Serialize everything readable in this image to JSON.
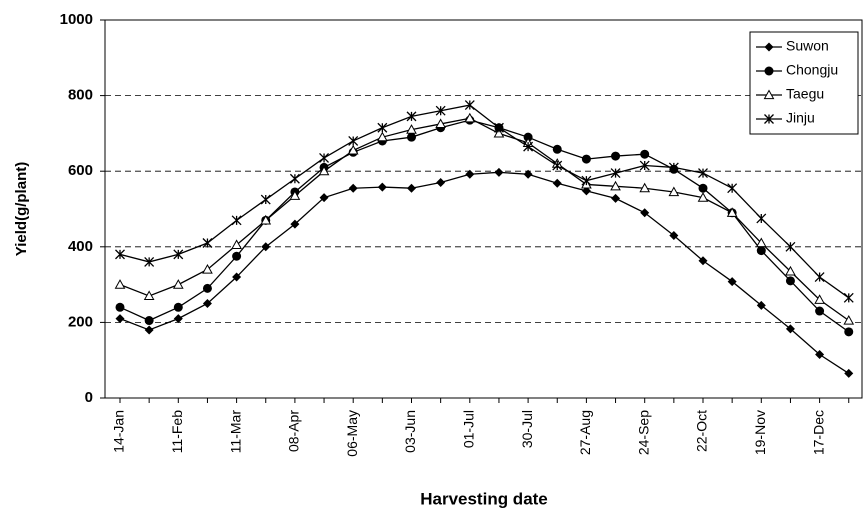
{
  "chart_data": {
    "type": "line",
    "x_label": "Harvesting date",
    "y_label": "Yield(g/plant)",
    "categories": [
      "14-Jan",
      null,
      "11-Feb",
      null,
      "11-Mar",
      null,
      "08-Apr",
      null,
      "06-May",
      null,
      "03-Jun",
      null,
      "01-Jul",
      null,
      "30-Jul",
      null,
      "27-Aug",
      null,
      "24-Sep",
      null,
      "22-Oct",
      null,
      "19-Nov",
      null,
      "17-Dec",
      null
    ],
    "series": [
      {
        "name": "Suwon",
        "color": "#000000",
        "marker": "diamond",
        "values": [
          210,
          180,
          210,
          250,
          320,
          400,
          460,
          530,
          555,
          558,
          555,
          570,
          592,
          597,
          592,
          568,
          548,
          528,
          490,
          430,
          363,
          308,
          245,
          183,
          115,
          65
        ]
      },
      {
        "name": "Chongju",
        "color": "#000000",
        "marker": "circle",
        "values": [
          240,
          205,
          240,
          290,
          375,
          470,
          545,
          610,
          650,
          680,
          690,
          715,
          735,
          715,
          690,
          658,
          632,
          640,
          645,
          605,
          555,
          490,
          390,
          310,
          230,
          175
        ]
      },
      {
        "name": "Taegu",
        "color": "#000000",
        "marker": "triangle",
        "values": [
          300,
          270,
          300,
          340,
          405,
          470,
          535,
          600,
          655,
          690,
          710,
          725,
          740,
          700,
          675,
          620,
          565,
          560,
          555,
          545,
          530,
          490,
          410,
          335,
          260,
          205
        ]
      },
      {
        "name": "Jinju",
        "color": "#000000",
        "marker": "star",
        "values": [
          380,
          360,
          380,
          410,
          470,
          525,
          580,
          635,
          680,
          715,
          745,
          760,
          775,
          715,
          665,
          615,
          575,
          595,
          615,
          610,
          595,
          555,
          475,
          400,
          320,
          265
        ]
      }
    ],
    "ylim": [
      0,
      1000
    ],
    "yticks": [
      0,
      200,
      400,
      600,
      800,
      1000
    ],
    "grid": true,
    "legend": "upper right"
  }
}
